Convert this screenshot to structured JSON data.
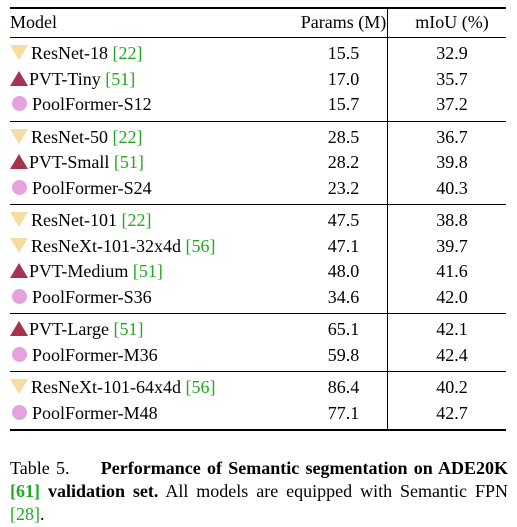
{
  "header": {
    "model": "Model",
    "params": "Params (M)",
    "miou": "mIoU (%)"
  },
  "groups": [
    [
      {
        "marker": "triangle-down",
        "name": "ResNet-18 ",
        "cite": "[22]",
        "params": "15.5",
        "miou": "32.9"
      },
      {
        "marker": "triangle-up",
        "name": "PVT-Tiny ",
        "cite": "[51]",
        "params": "17.0",
        "miou": "35.7"
      },
      {
        "marker": "circle",
        "name": "PoolFormer-S12",
        "cite": "",
        "params": "15.7",
        "miou": "37.2"
      }
    ],
    [
      {
        "marker": "triangle-down",
        "name": "ResNet-50 ",
        "cite": "[22]",
        "params": "28.5",
        "miou": "36.7"
      },
      {
        "marker": "triangle-up",
        "name": "PVT-Small ",
        "cite": "[51]",
        "params": "28.2",
        "miou": "39.8"
      },
      {
        "marker": "circle",
        "name": "PoolFormer-S24",
        "cite": "",
        "params": "23.2",
        "miou": "40.3"
      }
    ],
    [
      {
        "marker": "triangle-down",
        "name": "ResNet-101 ",
        "cite": "[22]",
        "params": "47.5",
        "miou": "38.8"
      },
      {
        "marker": "triangle-down",
        "name": "ResNeXt-101-32x4d ",
        "cite": "[56]",
        "params": "47.1",
        "miou": "39.7"
      },
      {
        "marker": "triangle-up",
        "name": "PVT-Medium ",
        "cite": "[51]",
        "params": "48.0",
        "miou": "41.6"
      },
      {
        "marker": "circle",
        "name": "PoolFormer-S36",
        "cite": "",
        "params": "34.6",
        "miou": "42.0"
      }
    ],
    [
      {
        "marker": "triangle-up",
        "name": "PVT-Large ",
        "cite": "[51]",
        "params": "65.1",
        "miou": "42.1"
      },
      {
        "marker": "circle",
        "name": "PoolFormer-M36",
        "cite": "",
        "params": "59.8",
        "miou": "42.4"
      }
    ],
    [
      {
        "marker": "triangle-down",
        "name": "ResNeXt-101-64x4d ",
        "cite": "[56]",
        "params": "86.4",
        "miou": "40.2"
      },
      {
        "marker": "circle",
        "name": "PoolFormer-M48",
        "cite": "",
        "params": "77.1",
        "miou": "42.7"
      }
    ]
  ],
  "caption": {
    "label": "Table 5.",
    "bold_text": "Performance of Semantic segmentation on ADE20K ",
    "bold_cite": "[61]",
    "bold_suffix": " validation set.",
    "text": " All models are equipped with Semantic FPN ",
    "text_cite": "[28]",
    "text_end": "."
  },
  "colors": {
    "triangle_down": "#f5dca3",
    "triangle_up": "#a8324f",
    "circle": "#e6a2dd",
    "citation": "#22a822"
  }
}
